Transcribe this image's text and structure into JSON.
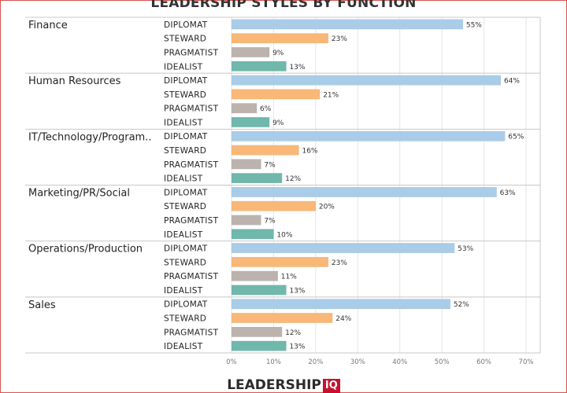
{
  "title": "LEADERSHIP STYLES BY FUNCTION",
  "logo": {
    "main": "LEADERSHIP",
    "badge": "IQ"
  },
  "colors": {
    "DIPLOMAT": "#a9cce8",
    "STEWARD": "#f9b878",
    "PRAGMATIST": "#bcb3ae",
    "IDEALIST": "#6fb8ab",
    "grid": "#e6e6e6",
    "separator": "#c8c8c8",
    "border": "#d9534f"
  },
  "chart_data": {
    "type": "bar",
    "orientation": "horizontal",
    "title": "LEADERSHIP STYLES BY FUNCTION",
    "xlim": [
      0,
      70
    ],
    "x_ticks": [
      "0%",
      "10%",
      "20%",
      "30%",
      "40%",
      "50%",
      "60%",
      "70%"
    ],
    "grid": true,
    "styles": [
      "DIPLOMAT",
      "STEWARD",
      "PRAGMATIST",
      "IDEALIST"
    ],
    "groups": [
      {
        "category": "Finance",
        "values": [
          55,
          23,
          9,
          13
        ],
        "labels": [
          "55%",
          "23%",
          "9%",
          "13%"
        ]
      },
      {
        "category": "Human Resources",
        "values": [
          64,
          21,
          6,
          9
        ],
        "labels": [
          "64%",
          "21%",
          "6%",
          "9%"
        ]
      },
      {
        "category": "IT/Technology/Program..",
        "values": [
          65,
          16,
          7,
          12
        ],
        "labels": [
          "65%",
          "16%",
          "7%",
          "12%"
        ]
      },
      {
        "category": "Marketing/PR/Social",
        "values": [
          63,
          20,
          7,
          10
        ],
        "labels": [
          "63%",
          "20%",
          "7%",
          "10%"
        ]
      },
      {
        "category": "Operations/Production",
        "values": [
          53,
          23,
          11,
          13
        ],
        "labels": [
          "53%",
          "23%",
          "11%",
          "13%"
        ]
      },
      {
        "category": "Sales",
        "values": [
          52,
          24,
          12,
          13
        ],
        "labels": [
          "52%",
          "24%",
          "12%",
          "13%"
        ]
      }
    ]
  }
}
